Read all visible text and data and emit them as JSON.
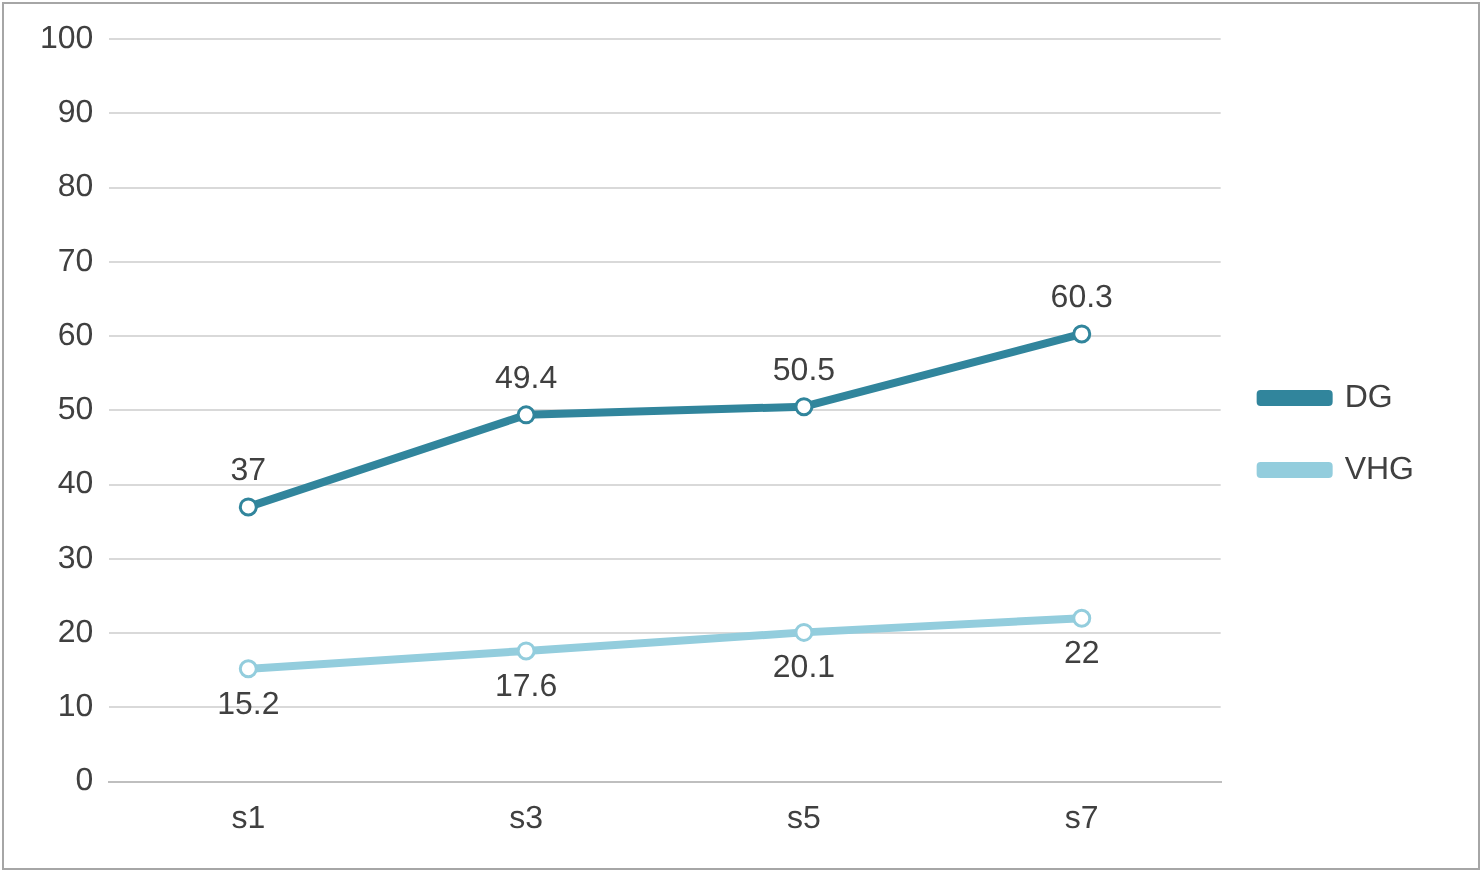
{
  "chart_data": {
    "type": "line",
    "categories": [
      "s1",
      "s3",
      "s5",
      "s7"
    ],
    "series": [
      {
        "name": "DG",
        "color": "#31859c",
        "values": [
          37,
          49.4,
          50.5,
          60.3
        ]
      },
      {
        "name": "VHG",
        "color": "#93cddd",
        "values": [
          15.2,
          17.6,
          20.1,
          22
        ]
      }
    ],
    "ylim": [
      0,
      100
    ],
    "yticks": [
      0,
      10,
      20,
      30,
      40,
      50,
      60,
      70,
      80,
      90,
      100
    ],
    "grid": "y",
    "legend": "right",
    "marker": "circle",
    "line_style": "solid",
    "data_labels": true
  }
}
